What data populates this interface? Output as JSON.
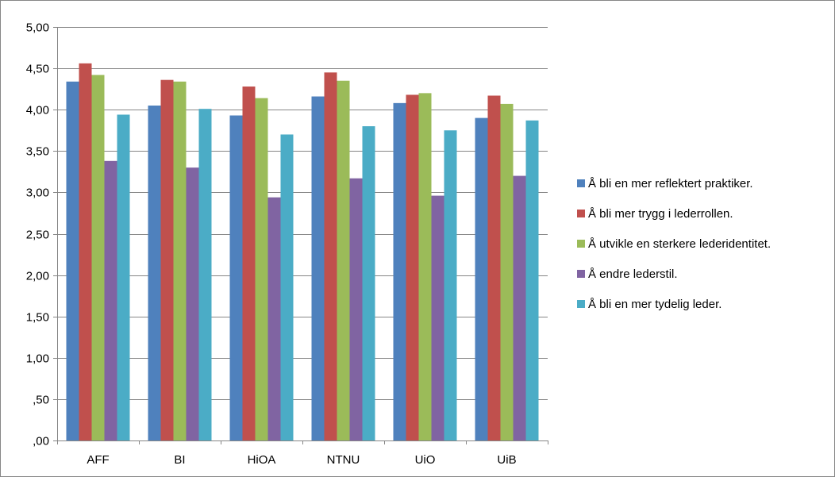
{
  "chart_data": {
    "type": "bar",
    "title": "",
    "xlabel": "",
    "ylabel": "",
    "categories": [
      "AFF",
      "BI",
      "HiOA",
      "NTNU",
      "UiO",
      "UiB"
    ],
    "ylim": [
      0,
      5
    ],
    "ytick_values": [
      0,
      0.5,
      1,
      1.5,
      2,
      2.5,
      3,
      3.5,
      4,
      4.5,
      5
    ],
    "ytick_labels": [
      ",00",
      ",50",
      "1,00",
      "1,50",
      "2,00",
      "2,50",
      "3,00",
      "3,50",
      "4,00",
      "4,50",
      "5,00"
    ],
    "grid": true,
    "legend_position": "right",
    "series": [
      {
        "name": "Å bli en mer reflektert praktiker.",
        "color": "#4F81BD",
        "values": [
          4.34,
          4.05,
          3.93,
          4.16,
          4.08,
          3.9
        ]
      },
      {
        "name": "Å bli mer trygg i lederrollen.",
        "color": "#C0504D",
        "values": [
          4.56,
          4.36,
          4.28,
          4.45,
          4.18,
          4.17
        ]
      },
      {
        "name": "Å utvikle en sterkere lederidentitet.",
        "color": "#9BBB59",
        "values": [
          4.42,
          4.34,
          4.14,
          4.35,
          4.2,
          4.07
        ]
      },
      {
        "name": "Å endre lederstil.",
        "color": "#8064A2",
        "values": [
          3.38,
          3.3,
          2.94,
          3.17,
          2.96,
          3.2
        ]
      },
      {
        "name": "Å bli en mer tydelig leder.",
        "color": "#4BACC6",
        "values": [
          3.94,
          4.01,
          3.7,
          3.8,
          3.75,
          3.87
        ]
      }
    ]
  }
}
